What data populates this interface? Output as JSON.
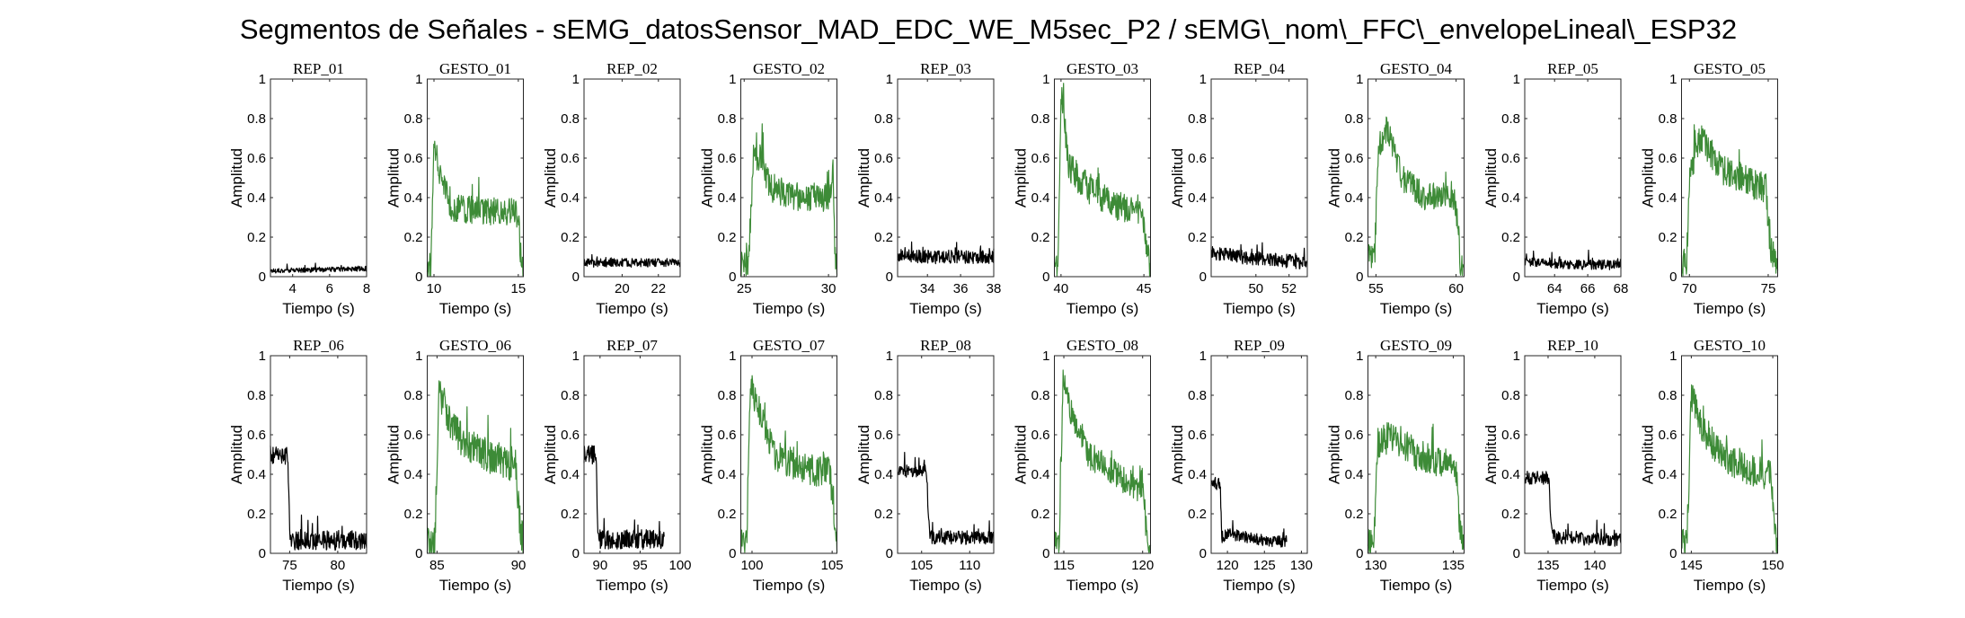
{
  "figure": {
    "title": "Segmentos de Señales - sEMG_datosSensor_MAD_EDC_WE_M5sec_P2 / sEMG\\_nom\\_FFC\\_envelopeLineal\\_ESP32"
  },
  "colors": {
    "rep": "#000000",
    "gesto": "#3d8b37",
    "axis": "#262626"
  },
  "chart_data": [
    {
      "type": "line",
      "title": "REP_01",
      "xlabel": "Tiempo (s)",
      "ylabel": "Amplitud",
      "xlim": [
        2.8,
        8
      ],
      "ylim": [
        0,
        1
      ],
      "xticks": [
        4,
        6,
        8
      ],
      "yticks": [
        0,
        0.2,
        0.4,
        0.6,
        0.8,
        1
      ],
      "kind": "rep",
      "x_range": [
        2.8,
        8
      ],
      "profile": [
        [
          0,
          0.03
        ],
        [
          0.5,
          0.035
        ],
        [
          1,
          0.04
        ]
      ],
      "noise": 0.012
    },
    {
      "type": "line",
      "title": "GESTO_01",
      "xlabel": "Tiempo (s)",
      "ylabel": "Amplitud",
      "xlim": [
        9.6,
        15.3
      ],
      "ylim": [
        0,
        1
      ],
      "xticks": [
        10,
        15
      ],
      "yticks": [
        0,
        0.2,
        0.4,
        0.6,
        0.8,
        1
      ],
      "kind": "gesto",
      "x_range": [
        9.6,
        15.3
      ],
      "profile": [
        [
          0,
          0.05
        ],
        [
          0.04,
          0.05
        ],
        [
          0.07,
          0.7
        ],
        [
          0.12,
          0.55
        ],
        [
          0.25,
          0.35
        ],
        [
          0.6,
          0.33
        ],
        [
          0.9,
          0.33
        ],
        [
          0.95,
          0.3
        ],
        [
          0.97,
          0.1
        ],
        [
          1,
          0.05
        ]
      ],
      "noise": 0.07
    },
    {
      "type": "line",
      "title": "REP_02",
      "xlabel": "Tiempo (s)",
      "ylabel": "Amplitud",
      "xlim": [
        17.9,
        23.2
      ],
      "ylim": [
        0,
        1
      ],
      "xticks": [
        20,
        22
      ],
      "yticks": [
        0,
        0.2,
        0.4,
        0.6,
        0.8,
        1
      ],
      "kind": "rep",
      "x_range": [
        17.9,
        23.2
      ],
      "profile": [
        [
          0,
          0.07
        ],
        [
          0.5,
          0.07
        ],
        [
          1,
          0.07
        ]
      ],
      "noise": 0.022
    },
    {
      "type": "line",
      "title": "GESTO_02",
      "xlabel": "Tiempo (s)",
      "ylabel": "Amplitud",
      "xlim": [
        24.8,
        30.5
      ],
      "ylim": [
        0,
        1
      ],
      "xticks": [
        25,
        30
      ],
      "yticks": [
        0,
        0.2,
        0.4,
        0.6,
        0.8,
        1
      ],
      "kind": "gesto",
      "x_range": [
        24.8,
        30.5
      ],
      "profile": [
        [
          0,
          0.06
        ],
        [
          0.08,
          0.06
        ],
        [
          0.13,
          0.6
        ],
        [
          0.22,
          0.6
        ],
        [
          0.3,
          0.45
        ],
        [
          0.6,
          0.4
        ],
        [
          0.93,
          0.4
        ],
        [
          0.96,
          0.55
        ],
        [
          0.98,
          0.1
        ],
        [
          1,
          0.05
        ]
      ],
      "noise": 0.07
    },
    {
      "type": "line",
      "title": "REP_03",
      "xlabel": "Tiempo (s)",
      "ylabel": "Amplitud",
      "xlim": [
        32.2,
        38
      ],
      "ylim": [
        0,
        1
      ],
      "xticks": [
        34,
        36,
        38
      ],
      "yticks": [
        0,
        0.2,
        0.4,
        0.6,
        0.8,
        1
      ],
      "kind": "rep",
      "x_range": [
        32.2,
        38
      ],
      "profile": [
        [
          0,
          0.1
        ],
        [
          0.5,
          0.1
        ],
        [
          1,
          0.1
        ]
      ],
      "noise": 0.035
    },
    {
      "type": "line",
      "title": "GESTO_03",
      "xlabel": "Tiempo (s)",
      "ylabel": "Amplitud",
      "xlim": [
        39.6,
        45.4
      ],
      "ylim": [
        0,
        1
      ],
      "xticks": [
        40,
        45
      ],
      "yticks": [
        0,
        0.2,
        0.4,
        0.6,
        0.8,
        1
      ],
      "kind": "gesto",
      "x_range": [
        39.6,
        45.4
      ],
      "profile": [
        [
          0,
          0.06
        ],
        [
          0.04,
          0.06
        ],
        [
          0.07,
          0.95
        ],
        [
          0.15,
          0.55
        ],
        [
          0.35,
          0.45
        ],
        [
          0.7,
          0.35
        ],
        [
          0.92,
          0.33
        ],
        [
          0.96,
          0.15
        ],
        [
          1,
          0.06
        ]
      ],
      "noise": 0.08
    },
    {
      "type": "line",
      "title": "REP_04",
      "xlabel": "Tiempo (s)",
      "ylabel": "Amplitud",
      "xlim": [
        47.3,
        53.1
      ],
      "ylim": [
        0,
        1
      ],
      "xticks": [
        50,
        52
      ],
      "yticks": [
        0,
        0.2,
        0.4,
        0.6,
        0.8,
        1
      ],
      "kind": "rep",
      "x_range": [
        47.3,
        53.1
      ],
      "profile": [
        [
          0,
          0.12
        ],
        [
          0.3,
          0.1
        ],
        [
          1,
          0.07
        ]
      ],
      "noise": 0.035
    },
    {
      "type": "line",
      "title": "GESTO_04",
      "xlabel": "Tiempo (s)",
      "ylabel": "Amplitud",
      "xlim": [
        54.5,
        60.5
      ],
      "ylim": [
        0,
        1
      ],
      "xticks": [
        55,
        60
      ],
      "yticks": [
        0,
        0.2,
        0.4,
        0.6,
        0.8,
        1
      ],
      "kind": "gesto",
      "x_range": [
        54.5,
        60.5
      ],
      "profile": [
        [
          0,
          0.1
        ],
        [
          0.07,
          0.1
        ],
        [
          0.11,
          0.65
        ],
        [
          0.2,
          0.75
        ],
        [
          0.35,
          0.5
        ],
        [
          0.6,
          0.4
        ],
        [
          0.88,
          0.42
        ],
        [
          0.93,
          0.3
        ],
        [
          0.96,
          0.08
        ],
        [
          1,
          0.05
        ]
      ],
      "noise": 0.07
    },
    {
      "type": "line",
      "title": "REP_05",
      "xlabel": "Tiempo (s)",
      "ylabel": "Amplitud",
      "xlim": [
        62.2,
        68
      ],
      "ylim": [
        0,
        1
      ],
      "xticks": [
        64,
        66,
        68
      ],
      "yticks": [
        0,
        0.2,
        0.4,
        0.6,
        0.8,
        1
      ],
      "kind": "rep",
      "x_range": [
        62.2,
        68
      ],
      "profile": [
        [
          0,
          0.08
        ],
        [
          0.5,
          0.06
        ],
        [
          1,
          0.06
        ]
      ],
      "noise": 0.025
    },
    {
      "type": "line",
      "title": "GESTO_05",
      "xlabel": "Tiempo (s)",
      "ylabel": "Amplitud",
      "xlim": [
        69.5,
        75.6
      ],
      "ylim": [
        0,
        1
      ],
      "xticks": [
        70,
        75
      ],
      "yticks": [
        0,
        0.2,
        0.4,
        0.6,
        0.8,
        1
      ],
      "kind": "gesto",
      "x_range": [
        69.5,
        75.6
      ],
      "profile": [
        [
          0,
          0.05
        ],
        [
          0.05,
          0.05
        ],
        [
          0.09,
          0.55
        ],
        [
          0.2,
          0.7
        ],
        [
          0.4,
          0.55
        ],
        [
          0.7,
          0.48
        ],
        [
          0.88,
          0.45
        ],
        [
          0.92,
          0.15
        ],
        [
          1,
          0.03
        ]
      ],
      "noise": 0.08
    },
    {
      "type": "line",
      "title": "REP_06",
      "xlabel": "Tiempo (s)",
      "ylabel": "Amplitud",
      "xlim": [
        73,
        83
      ],
      "ylim": [
        0,
        1
      ],
      "xticks": [
        75,
        80
      ],
      "yticks": [
        0,
        0.2,
        0.4,
        0.6,
        0.8,
        1
      ],
      "kind": "rep",
      "x_range": [
        73,
        83
      ],
      "profile": [
        [
          0,
          0.5
        ],
        [
          0.18,
          0.5
        ],
        [
          0.2,
          0.1
        ],
        [
          0.23,
          0.06
        ],
        [
          1,
          0.07
        ]
      ],
      "noise": 0.05
    },
    {
      "type": "line",
      "title": "GESTO_06",
      "xlabel": "Tiempo (s)",
      "ylabel": "Amplitud",
      "xlim": [
        84.4,
        90.3
      ],
      "ylim": [
        0,
        1
      ],
      "xticks": [
        85,
        90
      ],
      "yticks": [
        0,
        0.2,
        0.4,
        0.6,
        0.8,
        1
      ],
      "kind": "gesto",
      "x_range": [
        84.4,
        90.3
      ],
      "profile": [
        [
          0,
          0.05
        ],
        [
          0.08,
          0.05
        ],
        [
          0.12,
          0.8
        ],
        [
          0.2,
          0.7
        ],
        [
          0.4,
          0.55
        ],
        [
          0.7,
          0.48
        ],
        [
          0.92,
          0.45
        ],
        [
          0.96,
          0.15
        ],
        [
          1,
          0.05
        ]
      ],
      "noise": 0.09
    },
    {
      "type": "line",
      "title": "REP_07",
      "xlabel": "Tiempo (s)",
      "ylabel": "Amplitud",
      "xlim": [
        88,
        100
      ],
      "ylim": [
        0,
        1
      ],
      "xticks": [
        90,
        95,
        100
      ],
      "yticks": [
        0,
        0.2,
        0.4,
        0.6,
        0.8,
        1
      ],
      "kind": "rep",
      "x_range": [
        88,
        98
      ],
      "profile": [
        [
          0,
          0.5
        ],
        [
          0.15,
          0.5
        ],
        [
          0.17,
          0.1
        ],
        [
          0.2,
          0.07
        ],
        [
          0.8,
          0.07
        ]
      ],
      "noise": 0.05
    },
    {
      "type": "line",
      "title": "GESTO_07",
      "xlabel": "Tiempo (s)",
      "ylabel": "Amplitud",
      "xlim": [
        99.3,
        105.3
      ],
      "ylim": [
        0,
        1
      ],
      "xticks": [
        100,
        105
      ],
      "yticks": [
        0,
        0.2,
        0.4,
        0.6,
        0.8,
        1
      ],
      "kind": "gesto",
      "x_range": [
        99.3,
        105.3
      ],
      "profile": [
        [
          0,
          0.05
        ],
        [
          0.06,
          0.05
        ],
        [
          0.1,
          0.85
        ],
        [
          0.18,
          0.75
        ],
        [
          0.35,
          0.5
        ],
        [
          0.7,
          0.42
        ],
        [
          0.93,
          0.42
        ],
        [
          0.97,
          0.15
        ],
        [
          1,
          0.05
        ]
      ],
      "noise": 0.08
    },
    {
      "type": "line",
      "title": "REP_08",
      "xlabel": "Tiempo (s)",
      "ylabel": "Amplitud",
      "xlim": [
        102.5,
        112.5
      ],
      "ylim": [
        0,
        1
      ],
      "xticks": [
        105,
        110
      ],
      "yticks": [
        0,
        0.2,
        0.4,
        0.6,
        0.8,
        1
      ],
      "kind": "rep",
      "x_range": [
        102.5,
        112.5
      ],
      "profile": [
        [
          0,
          0.42
        ],
        [
          0.3,
          0.42
        ],
        [
          0.33,
          0.1
        ],
        [
          0.36,
          0.08
        ],
        [
          1,
          0.08
        ]
      ],
      "noise": 0.035
    },
    {
      "type": "line",
      "title": "GESTO_08",
      "xlabel": "Tiempo (s)",
      "ylabel": "Amplitud",
      "xlim": [
        114.4,
        120.5
      ],
      "ylim": [
        0,
        1
      ],
      "xticks": [
        115,
        120
      ],
      "yticks": [
        0,
        0.2,
        0.4,
        0.6,
        0.8,
        1
      ],
      "kind": "gesto",
      "x_range": [
        114.4,
        120.5
      ],
      "profile": [
        [
          0,
          0.05
        ],
        [
          0.05,
          0.05
        ],
        [
          0.09,
          0.9
        ],
        [
          0.18,
          0.7
        ],
        [
          0.35,
          0.5
        ],
        [
          0.7,
          0.38
        ],
        [
          0.92,
          0.32
        ],
        [
          0.96,
          0.1
        ],
        [
          1,
          0.05
        ]
      ],
      "noise": 0.07
    },
    {
      "type": "line",
      "title": "REP_09",
      "xlabel": "Tiempo (s)",
      "ylabel": "Amplitud",
      "xlim": [
        117.8,
        130.8
      ],
      "ylim": [
        0,
        1
      ],
      "xticks": [
        120,
        125,
        130
      ],
      "yticks": [
        0,
        0.2,
        0.4,
        0.6,
        0.8,
        1
      ],
      "kind": "rep",
      "x_range": [
        117.8,
        128
      ],
      "profile": [
        [
          0,
          0.35
        ],
        [
          0.12,
          0.35
        ],
        [
          0.14,
          0.08
        ],
        [
          0.22,
          0.1
        ],
        [
          0.78,
          0.06
        ]
      ],
      "noise": 0.03
    },
    {
      "type": "line",
      "title": "GESTO_09",
      "xlabel": "Tiempo (s)",
      "ylabel": "Amplitud",
      "xlim": [
        129.5,
        135.7
      ],
      "ylim": [
        0,
        1
      ],
      "xticks": [
        130,
        135
      ],
      "yticks": [
        0,
        0.2,
        0.4,
        0.6,
        0.8,
        1
      ],
      "kind": "gesto",
      "x_range": [
        129.5,
        135.7
      ],
      "profile": [
        [
          0,
          0.05
        ],
        [
          0.06,
          0.05
        ],
        [
          0.1,
          0.55
        ],
        [
          0.25,
          0.6
        ],
        [
          0.5,
          0.5
        ],
        [
          0.8,
          0.45
        ],
        [
          0.92,
          0.42
        ],
        [
          0.96,
          0.1
        ],
        [
          1,
          0.05
        ]
      ],
      "noise": 0.08
    },
    {
      "type": "line",
      "title": "REP_10",
      "xlabel": "Tiempo (s)",
      "ylabel": "Amplitud",
      "xlim": [
        132.5,
        142.8
      ],
      "ylim": [
        0,
        1
      ],
      "xticks": [
        135,
        140
      ],
      "yticks": [
        0,
        0.2,
        0.4,
        0.6,
        0.8,
        1
      ],
      "kind": "rep",
      "x_range": [
        132.5,
        142.8
      ],
      "profile": [
        [
          0,
          0.38
        ],
        [
          0.25,
          0.38
        ],
        [
          0.28,
          0.1
        ],
        [
          0.32,
          0.08
        ],
        [
          1,
          0.07
        ]
      ],
      "noise": 0.035
    },
    {
      "type": "line",
      "title": "GESTO_10",
      "xlabel": "Tiempo (s)",
      "ylabel": "Amplitud",
      "xlim": [
        144.4,
        150.3
      ],
      "ylim": [
        0,
        1
      ],
      "xticks": [
        145,
        150
      ],
      "yticks": [
        0,
        0.2,
        0.4,
        0.6,
        0.8,
        1
      ],
      "kind": "gesto",
      "x_range": [
        144.4,
        150.3
      ],
      "profile": [
        [
          0,
          0.05
        ],
        [
          0.06,
          0.05
        ],
        [
          0.1,
          0.8
        ],
        [
          0.2,
          0.65
        ],
        [
          0.4,
          0.5
        ],
        [
          0.7,
          0.42
        ],
        [
          0.93,
          0.4
        ],
        [
          0.97,
          0.1
        ],
        [
          1,
          0.05
        ]
      ],
      "noise": 0.08
    }
  ]
}
